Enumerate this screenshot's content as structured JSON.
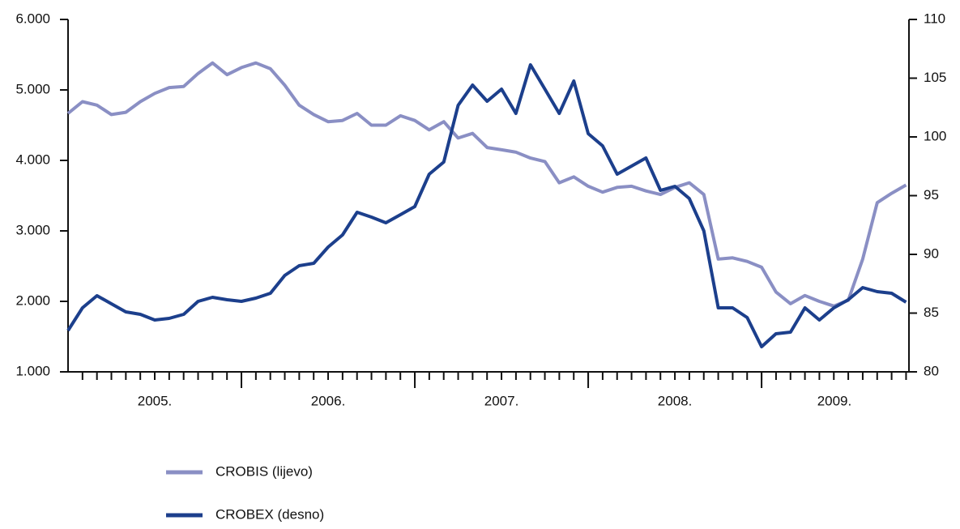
{
  "chart_data": {
    "type": "line",
    "x": [
      2005.0,
      2005.083,
      2005.167,
      2005.25,
      2005.333,
      2005.417,
      2005.5,
      2005.583,
      2005.667,
      2005.75,
      2005.833,
      2005.917,
      2006.0,
      2006.083,
      2006.167,
      2006.25,
      2006.333,
      2006.417,
      2006.5,
      2006.583,
      2006.667,
      2006.75,
      2006.833,
      2006.917,
      2007.0,
      2007.083,
      2007.167,
      2007.25,
      2007.333,
      2007.417,
      2007.5,
      2007.583,
      2007.667,
      2007.75,
      2007.833,
      2007.917,
      2008.0,
      2008.083,
      2008.167,
      2008.25,
      2008.333,
      2008.417,
      2008.5,
      2008.583,
      2008.667,
      2008.75,
      2008.833,
      2008.917,
      2009.0,
      2009.083,
      2009.167,
      2009.25,
      2009.333,
      2009.417,
      2009.5,
      2009.583,
      2009.667,
      2009.75,
      2009.833
    ],
    "xlim": [
      2005,
      2009.85
    ],
    "xticks": [
      2006,
      2007,
      2008,
      2009
    ],
    "minor_ticks_per_year": 12,
    "x_labels": [
      {
        "value": 2005.5,
        "label": "2005."
      },
      {
        "value": 2006.5,
        "label": "2006."
      },
      {
        "value": 2007.5,
        "label": "2007."
      },
      {
        "value": 2008.5,
        "label": "2008."
      },
      {
        "value": 2009.42,
        "label": "2009."
      }
    ],
    "ylim": [
      1000,
      6000
    ],
    "yticks": [
      {
        "value": 1000,
        "label": "1.000"
      },
      {
        "value": 2000,
        "label": "2.000"
      },
      {
        "value": 3000,
        "label": "3.000"
      },
      {
        "value": 4000,
        "label": "4.000"
      },
      {
        "value": 5000,
        "label": "5.000"
      },
      {
        "value": 6000,
        "label": "6.000"
      }
    ],
    "y2lim": [
      80,
      110
    ],
    "y2ticks": [
      80,
      85,
      90,
      95,
      100,
      105,
      110
    ],
    "grid": false,
    "series": [
      {
        "name": "CROBIS (lijevo)",
        "color": "#8a8fc4",
        "axis": "y2",
        "values": [
          102.0,
          103.0,
          102.7,
          101.9,
          102.1,
          103.0,
          103.7,
          104.2,
          104.3,
          105.4,
          106.3,
          105.3,
          105.9,
          106.3,
          105.8,
          104.4,
          102.7,
          101.9,
          101.3,
          101.4,
          102.0,
          101.0,
          101.0,
          101.8,
          101.4,
          100.6,
          101.3,
          99.9,
          100.3,
          99.1,
          98.9,
          98.7,
          98.2,
          97.9,
          96.1,
          96.6,
          95.8,
          95.3,
          95.7,
          95.8,
          95.4,
          95.1,
          95.7,
          96.1,
          95.1,
          89.6,
          89.7,
          89.4,
          88.9,
          86.8,
          85.8,
          86.5,
          86.0,
          85.6,
          86.1,
          89.6,
          94.4,
          95.2,
          95.9
        ]
      },
      {
        "name": "CROBEX (desno)",
        "color": "#1c3f8c",
        "values": [
          1586,
          1908,
          2080,
          1966,
          1851,
          1816,
          1736,
          1759,
          1816,
          2000,
          2057,
          2023,
          2000,
          2046,
          2115,
          2368,
          2506,
          2540,
          2770,
          2943,
          3264,
          3195,
          3115,
          3230,
          3345,
          3805,
          3977,
          4782,
          5069,
          4839,
          5011,
          4667,
          5356,
          5011,
          4667,
          5126,
          4379,
          4207,
          3805,
          3920,
          4034,
          3575,
          3632,
          3460,
          3000,
          1908,
          1908,
          1770,
          1356,
          1540,
          1563,
          1908,
          1736,
          1908,
          2023,
          2195,
          2138,
          2115,
          1989
        ]
      }
    ]
  }
}
